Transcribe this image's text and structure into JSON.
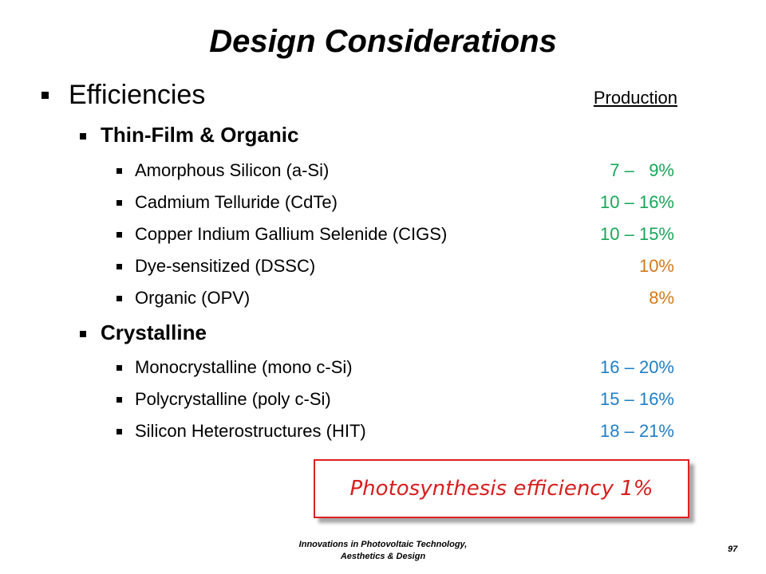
{
  "slide": {
    "title": "Design Considerations",
    "section": "Efficiencies",
    "column_header": "Production",
    "groups": [
      {
        "label": "Thin-Film & Organic",
        "items": [
          {
            "label": "Amorphous Silicon (a-Si)",
            "value": "7 –   9%",
            "color": "#17a659"
          },
          {
            "label": "Cadmium Telluride (CdTe)",
            "value": "10 – 16%",
            "color": "#17a659"
          },
          {
            "label": "Copper Indium Gallium Selenide (CIGS)",
            "value": "10 – 15%",
            "color": "#17a659"
          },
          {
            "label": "Dye-sensitized (DSSC)",
            "value": "10%",
            "color": "#d47818"
          },
          {
            "label": "Organic (OPV)",
            "value": "8%",
            "color": "#d47818"
          }
        ]
      },
      {
        "label": "Crystalline",
        "items": [
          {
            "label": "Monocrystalline (mono c-Si)",
            "value": "16 – 20%",
            "color": "#1f7ec4"
          },
          {
            "label": "Polycrystalline (poly c-Si)",
            "value": "15 – 16%",
            "color": "#1f7ec4"
          },
          {
            "label": "Silicon Heterostructures (HIT)",
            "value": "18 – 21%",
            "color": "#1f7ec4"
          }
        ]
      }
    ],
    "callout": "Photosynthesis efficiency 1%",
    "callout_border_color": "#e02020",
    "footer_line1": "Innovations  in Photovoltaic  Technology,",
    "footer_line2": "Aesthetics  & Design",
    "page_number": "97"
  }
}
